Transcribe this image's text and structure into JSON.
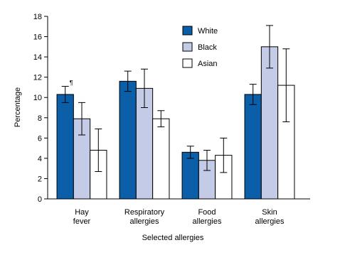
{
  "chart_data": {
    "type": "bar",
    "x_label": "Selected allergies",
    "y_label": "Percentage",
    "categories": [
      "Hay fever",
      "Respiratory allergies",
      "Food allergies",
      "Skin allergies"
    ],
    "series": [
      {
        "name": "White",
        "color": "#0b5ea8",
        "values": [
          10.3,
          11.6,
          4.6,
          10.3
        ],
        "errors": [
          0.8,
          1.0,
          0.6,
          1.0
        ]
      },
      {
        "name": "Black",
        "color": "#c3cbe6",
        "values": [
          7.9,
          10.9,
          3.8,
          15.0
        ],
        "errors": [
          1.6,
          1.9,
          1.0,
          2.1
        ]
      },
      {
        "name": "Asian",
        "color": "#ffffff",
        "values": [
          4.8,
          7.9,
          4.3,
          11.2
        ],
        "errors": [
          2.1,
          0.8,
          1.7,
          3.6
        ]
      }
    ],
    "annotations": [
      "¶"
    ],
    "ylim": [
      0,
      18
    ],
    "yticks": [
      0,
      2,
      4,
      6,
      8,
      10,
      12,
      14,
      16,
      18
    ],
    "legend": "top-right"
  }
}
